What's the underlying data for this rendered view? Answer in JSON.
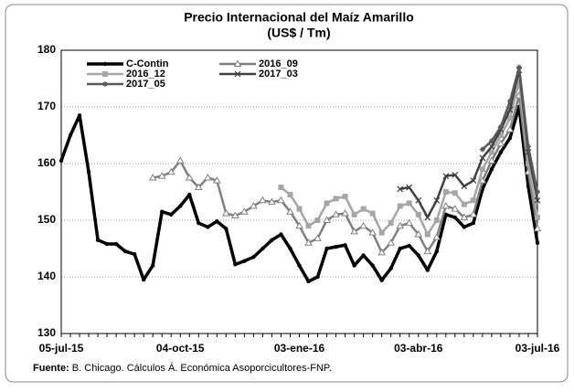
{
  "chart_data": {
    "type": "line",
    "title": "Precio Internacional del Maíz Amarillo",
    "subtitle": "(US$ / Tm)",
    "source_label": "Fuente:",
    "source": "B. Chicago. Cálculos Á. Económica Asoporcicultores-FNP.",
    "categories": [
      "05-jul-15",
      null,
      null,
      null,
      null,
      null,
      null,
      null,
      null,
      null,
      null,
      null,
      null,
      "04-oct-15",
      null,
      null,
      null,
      null,
      null,
      null,
      null,
      null,
      null,
      null,
      null,
      null,
      "03-ene-16",
      null,
      null,
      null,
      null,
      null,
      null,
      null,
      null,
      null,
      null,
      null,
      null,
      "03-abr-16",
      null,
      null,
      null,
      null,
      null,
      null,
      null,
      null,
      null,
      null,
      null,
      null,
      "03-jul-16"
    ],
    "ylim": [
      130,
      180
    ],
    "yticks": [
      130,
      140,
      150,
      160,
      170,
      180
    ],
    "grid": true,
    "legend": "top-left",
    "series": [
      {
        "name": "C-Contin",
        "color": "#000000",
        "marker": "circle",
        "values": [
          160.5,
          165,
          168.5,
          158.5,
          146.5,
          145.8,
          145.8,
          144.5,
          144,
          139.5,
          142,
          151.5,
          151,
          152.5,
          154.5,
          149.5,
          148.8,
          149.8,
          148.5,
          142.2,
          142.8,
          143.5,
          145,
          146.5,
          147.5,
          145,
          142,
          139.2,
          140,
          145,
          145.3,
          145.6,
          142,
          143.8,
          142,
          139.4,
          141.5,
          145,
          145.5,
          143.8,
          141.2,
          144.5,
          151,
          150.5,
          148.8,
          149.5,
          155.5,
          159,
          162,
          164.5,
          170,
          156,
          146
        ]
      },
      {
        "name": "2016_09",
        "color": "#808080",
        "marker": "triangle",
        "values": [
          null,
          null,
          null,
          null,
          null,
          null,
          null,
          null,
          null,
          null,
          157.5,
          157.8,
          158.5,
          160.5,
          157.5,
          155.8,
          157.5,
          157,
          151.2,
          150.8,
          151.5,
          152.5,
          153.5,
          153.2,
          153.5,
          151.5,
          149,
          146,
          146.8,
          150,
          151,
          151.2,
          148,
          149,
          147.8,
          144.3,
          146,
          149,
          149.5,
          147.5,
          144.5,
          147,
          152.5,
          152,
          150.5,
          151,
          157,
          160.5,
          163.5,
          166,
          172,
          158.5,
          148.5
        ]
      },
      {
        "name": "2016_12",
        "color": "#a6a6a6",
        "marker": "square",
        "values": [
          null,
          null,
          null,
          null,
          null,
          null,
          null,
          null,
          null,
          null,
          null,
          null,
          null,
          null,
          null,
          null,
          null,
          null,
          null,
          null,
          null,
          null,
          null,
          null,
          155.8,
          154.5,
          152,
          149,
          150,
          153,
          153.8,
          154.2,
          151,
          152,
          151.2,
          147.8,
          149.5,
          152.5,
          153,
          151,
          147.5,
          150,
          155,
          154.8,
          152.8,
          153.5,
          159,
          162,
          165,
          168,
          174.5,
          160,
          150.5
        ]
      },
      {
        "name": "2017_03",
        "color": "#404040",
        "marker": "cross",
        "values": [
          null,
          null,
          null,
          null,
          null,
          null,
          null,
          null,
          null,
          null,
          null,
          null,
          null,
          null,
          null,
          null,
          null,
          null,
          null,
          null,
          null,
          null,
          null,
          null,
          null,
          null,
          null,
          null,
          null,
          null,
          null,
          null,
          null,
          null,
          null,
          null,
          null,
          155.5,
          155.8,
          153.5,
          150.5,
          153.5,
          157.8,
          158,
          156,
          157,
          161,
          163,
          166,
          169.5,
          176.5,
          162,
          153.5
        ]
      },
      {
        "name": "2017_05",
        "color": "#595959",
        "marker": "star",
        "values": [
          null,
          null,
          null,
          null,
          null,
          null,
          null,
          null,
          null,
          null,
          null,
          null,
          null,
          null,
          null,
          null,
          null,
          null,
          null,
          null,
          null,
          null,
          null,
          null,
          null,
          null,
          null,
          null,
          null,
          null,
          null,
          null,
          null,
          null,
          null,
          null,
          null,
          null,
          null,
          null,
          null,
          null,
          null,
          null,
          null,
          null,
          162.5,
          164,
          166.5,
          171,
          177,
          163,
          155
        ]
      }
    ]
  }
}
